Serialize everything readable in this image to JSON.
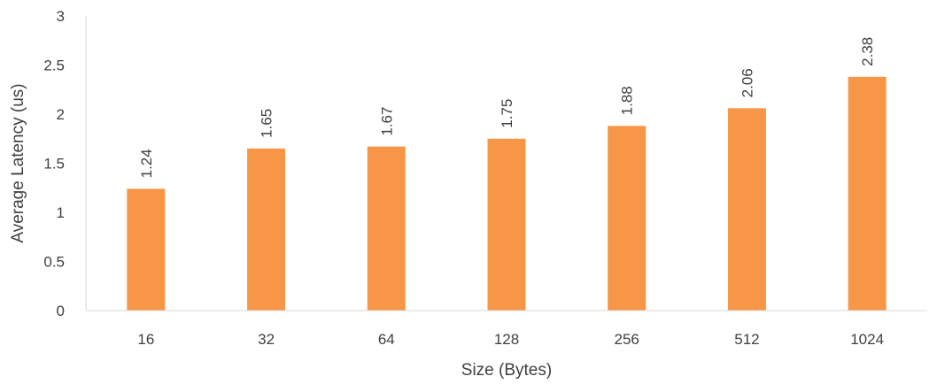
{
  "chart_data": {
    "type": "bar",
    "categories": [
      "16",
      "32",
      "64",
      "128",
      "256",
      "512",
      "1024"
    ],
    "values": [
      1.24,
      1.65,
      1.67,
      1.75,
      1.88,
      2.06,
      2.38
    ],
    "data_labels": [
      "1.24",
      "1.65",
      "1.67",
      "1.75",
      "1.88",
      "2.06",
      "2.38"
    ],
    "title": "",
    "xlabel": "Size (Bytes)",
    "ylabel": "Average Latency (us)",
    "ylim": [
      0,
      3
    ],
    "yticks": [
      "0",
      "0.5",
      "1",
      "1.5",
      "2",
      "2.5",
      "3"
    ],
    "grid": false,
    "legend": "none",
    "bar_color": "#F79646",
    "axis_color": "#D9D9D9",
    "text_color": "#404040"
  }
}
